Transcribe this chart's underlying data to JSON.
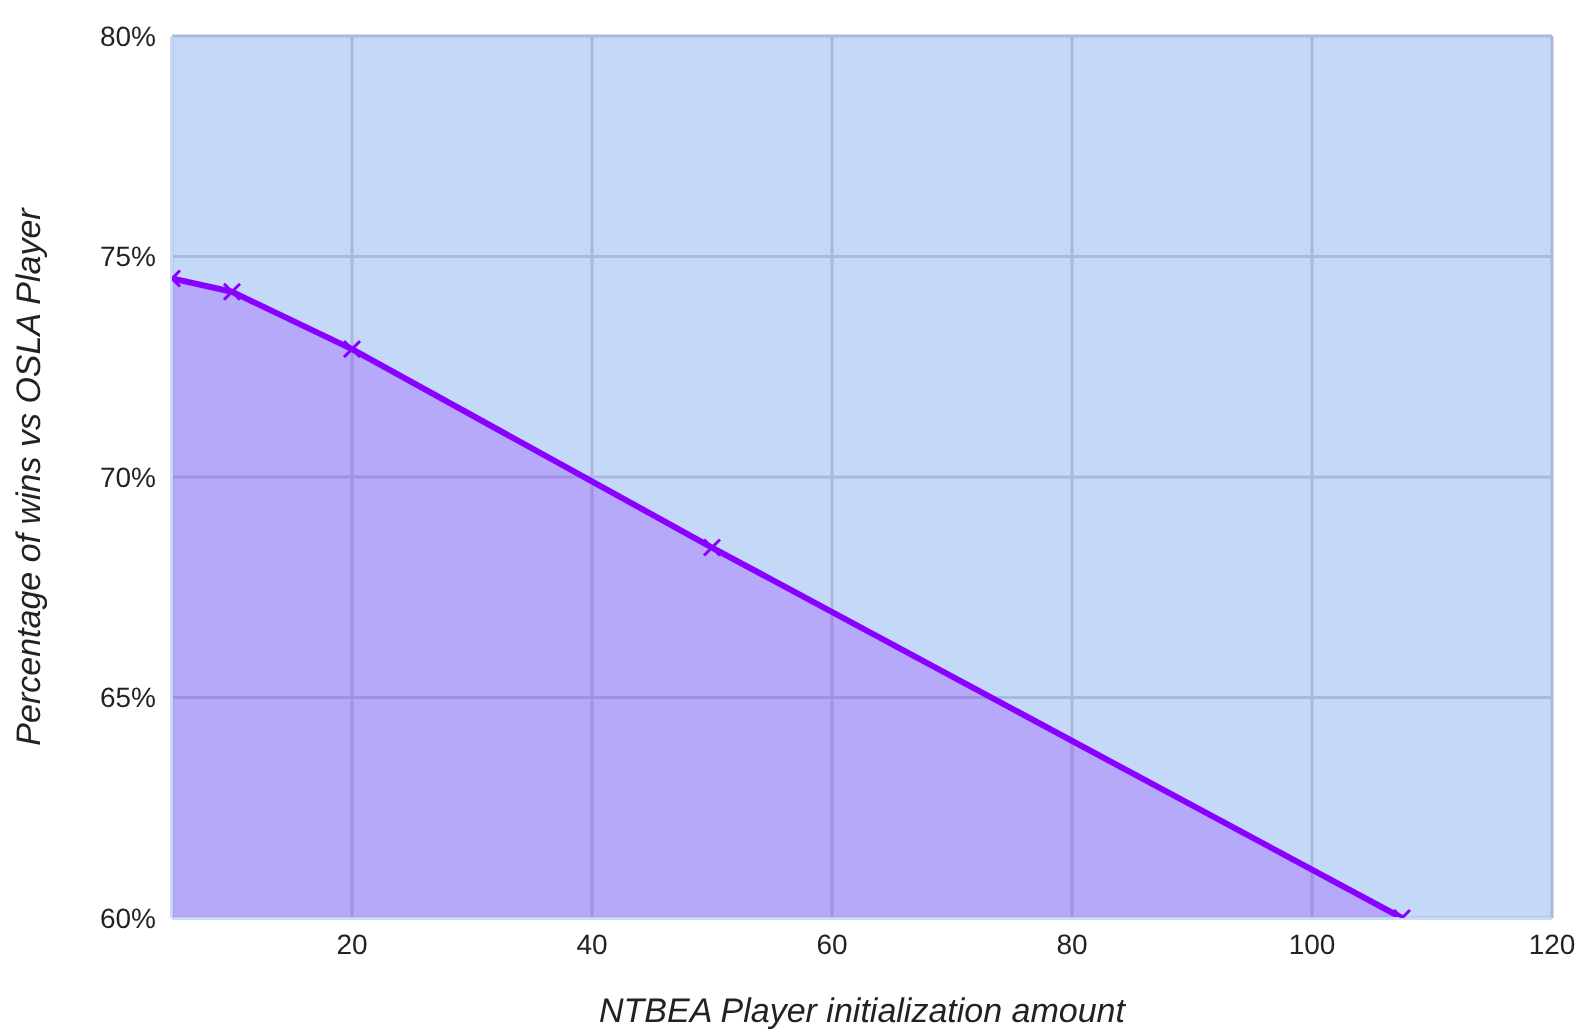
{
  "chart_data": {
    "type": "area",
    "xlabel": "NTBEA Player initialization amount",
    "ylabel": "Percentage of wins vs OSLA Player",
    "x": [
      5,
      10,
      20,
      50,
      107.5
    ],
    "series": [
      {
        "color": "#8a00ff",
        "values": [
          74.5,
          74.2,
          72.9,
          68.4,
          60
        ]
      }
    ],
    "xlim": [
      5,
      120
    ],
    "xticks": [
      20,
      40,
      60,
      80,
      100,
      120
    ],
    "ylim": [
      60,
      80
    ],
    "yticks": [
      {
        "value": 60,
        "label": "60%"
      },
      {
        "value": 65,
        "label": "65%"
      },
      {
        "value": 70,
        "label": "70%"
      },
      {
        "value": 75,
        "label": "75%"
      },
      {
        "value": 80,
        "label": "80%"
      }
    ],
    "grid": true,
    "marker": "cross",
    "line_style": "solid"
  }
}
